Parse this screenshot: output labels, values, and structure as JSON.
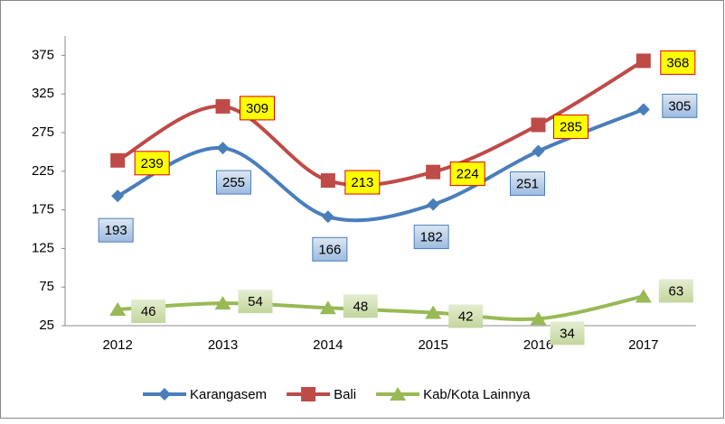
{
  "chart_data": {
    "type": "line",
    "categories": [
      "2012",
      "2013",
      "2014",
      "2015",
      "2016",
      "2017"
    ],
    "series": [
      {
        "name": "Karangasem",
        "color": "#4a7ebb",
        "values": [
          193,
          255,
          166,
          182,
          251,
          305
        ]
      },
      {
        "name": "Bali",
        "color": "#be4b48",
        "values": [
          239,
          309,
          213,
          224,
          285,
          368
        ]
      },
      {
        "name": "Kab/Kota Lainnya",
        "color": "#98b954",
        "values": [
          46,
          54,
          48,
          42,
          34,
          63
        ]
      }
    ],
    "ylim": [
      25,
      400
    ],
    "yticks": [
      25,
      75,
      125,
      175,
      225,
      275,
      325,
      375
    ],
    "legend": "bottom",
    "grid": false
  }
}
